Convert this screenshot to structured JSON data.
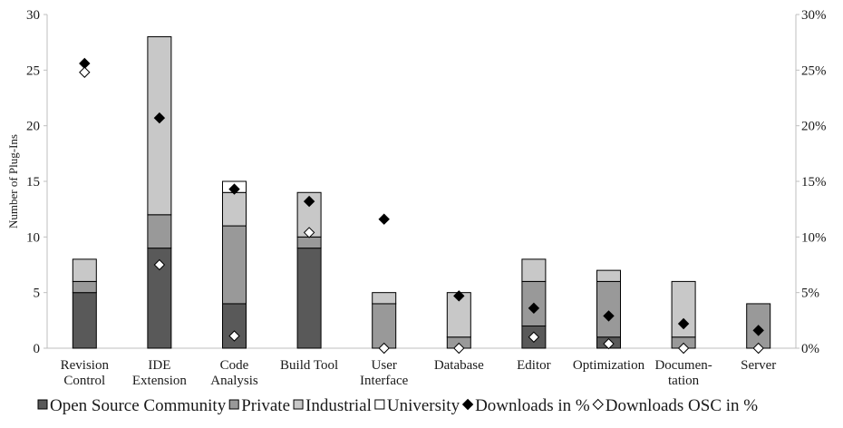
{
  "chart_data": {
    "type": "bar",
    "stacked": true,
    "ylabel": "Number of Plug-Ins",
    "ylim": [
      0,
      30
    ],
    "y_ticks": [
      "0",
      "5",
      "10",
      "15",
      "20",
      "25",
      "30"
    ],
    "y2lim": [
      0,
      30
    ],
    "y2_ticks": [
      "0%",
      "5%",
      "10%",
      "15%",
      "20%",
      "25%",
      "30%"
    ],
    "grid": false,
    "legend_position": "bottom",
    "categories": [
      [
        "Revision",
        "Control"
      ],
      [
        "IDE",
        "Extension"
      ],
      [
        "Code",
        "Analysis"
      ],
      [
        "Build Tool"
      ],
      [
        "User",
        "Interface"
      ],
      [
        "Database"
      ],
      [
        "Editor"
      ],
      [
        "Optimization"
      ],
      [
        "Documen-",
        "tation"
      ],
      [
        "Server"
      ]
    ],
    "series": [
      {
        "name": "Open Source Community",
        "kind": "bar",
        "color": "#595959",
        "values": [
          5,
          9,
          4,
          9,
          0,
          0,
          2,
          1,
          0,
          0
        ]
      },
      {
        "name": "Private",
        "kind": "bar",
        "color": "#999999",
        "values": [
          1,
          3,
          7,
          1,
          4,
          1,
          4,
          5,
          1,
          4
        ]
      },
      {
        "name": "Industrial",
        "kind": "bar",
        "color": "#c8c8c8",
        "values": [
          2,
          16,
          3,
          4,
          1,
          4,
          2,
          1,
          5,
          0
        ]
      },
      {
        "name": "University",
        "kind": "bar",
        "color": "#ffffff",
        "values": [
          0,
          0,
          1,
          0,
          0,
          0,
          0,
          0,
          0,
          0
        ]
      },
      {
        "name": "Downloads in %",
        "kind": "marker",
        "axis": "right",
        "marker": "filled-diamond",
        "values": [
          25.6,
          20.7,
          14.3,
          13.2,
          11.6,
          4.7,
          3.6,
          2.9,
          2.2,
          1.6
        ]
      },
      {
        "name": "Downloads OSC in %",
        "kind": "marker",
        "axis": "right",
        "marker": "open-diamond",
        "values": [
          24.8,
          7.5,
          1.1,
          10.4,
          0.0,
          0.0,
          1.0,
          0.4,
          0.0,
          0.0
        ]
      }
    ]
  },
  "legend": {
    "items": [
      {
        "label": "Open Source Community",
        "swatch": "square",
        "color": "#595959"
      },
      {
        "label": "Private",
        "swatch": "square",
        "color": "#999999"
      },
      {
        "label": "Industrial",
        "swatch": "square",
        "color": "#c8c8c8"
      },
      {
        "label": "University",
        "swatch": "square",
        "color": "#ffffff"
      },
      {
        "label": "Downloads in %",
        "swatch": "filled-diamond",
        "color": "#000000"
      },
      {
        "label": "Downloads OSC in %",
        "swatch": "open-diamond",
        "color": "#ffffff"
      }
    ]
  }
}
